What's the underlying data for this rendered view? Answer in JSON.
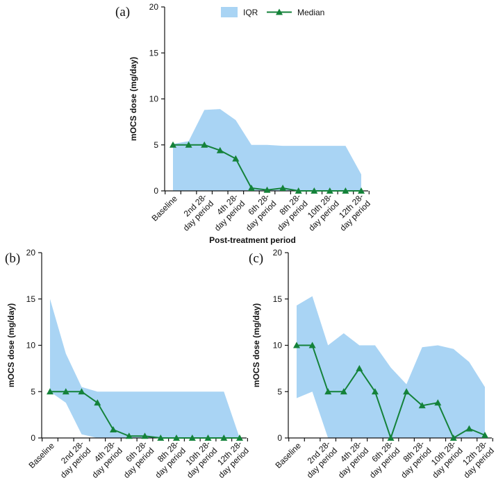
{
  "colors": {
    "iqr": "#a9d4f4",
    "median": "#14823a",
    "axis": "#111111"
  },
  "legend": {
    "iqr_label": "IQR",
    "median_label": "Median"
  },
  "chart_data": [
    {
      "panel": "(a)",
      "type": "area",
      "ylabel": "mOCS dose (mg/day)",
      "xlabel": "Post-treatment period",
      "ylim": [
        0,
        20
      ],
      "yticks": [
        "0",
        "5",
        "10",
        "15",
        "20"
      ],
      "tick_labels": [
        "Baseline",
        "2nd 28-day period",
        "4th 28-day period",
        "6th 28-day period",
        "8th 28-day period",
        "10th 28-day period",
        "12th 28-day period"
      ],
      "x_count": 13,
      "series": [
        {
          "name": "Median",
          "values": [
            5,
            5,
            5,
            4.4,
            3.5,
            0.3,
            0.1,
            0.3,
            0,
            0,
            0,
            0,
            0
          ]
        },
        {
          "name": "IQR upper",
          "values": [
            5.1,
            5.4,
            8.8,
            8.9,
            7.7,
            5,
            5,
            4.9,
            4.9,
            4.9,
            4.9,
            4.9,
            1.8
          ]
        },
        {
          "name": "IQR lower",
          "values": [
            0,
            0,
            0,
            0,
            0,
            0,
            0,
            0,
            0,
            0,
            0,
            0,
            0
          ]
        }
      ]
    },
    {
      "panel": "(b)",
      "type": "area",
      "ylabel": "mOCS dose (mg/day)",
      "xlabel": "",
      "ylim": [
        0,
        20
      ],
      "yticks": [
        "0",
        "5",
        "10",
        "15",
        "20"
      ],
      "tick_labels": [
        "Baseline",
        "2nd 28-day period",
        "4th 28-day period",
        "6th 28-day period",
        "8th 28-day period",
        "10th 28-day period",
        "12th 28-day period"
      ],
      "x_count": 13,
      "series": [
        {
          "name": "Median",
          "values": [
            5,
            5,
            5,
            3.8,
            0.9,
            0.2,
            0.2,
            0,
            0,
            0,
            0,
            0,
            0
          ]
        },
        {
          "name": "IQR upper",
          "values": [
            15,
            9.1,
            5.5,
            5,
            5,
            5,
            5,
            5,
            5,
            5,
            5,
            5,
            0
          ]
        },
        {
          "name": "IQR lower",
          "values": [
            5,
            3.8,
            0.4,
            0,
            0,
            0,
            0,
            0,
            0,
            0,
            0,
            0,
            0
          ]
        }
      ]
    },
    {
      "panel": "(c)",
      "type": "area",
      "ylabel": "mOCS dose (mg/day)",
      "xlabel": "",
      "ylim": [
        0,
        20
      ],
      "yticks": [
        "0",
        "5",
        "10",
        "15",
        "20"
      ],
      "tick_labels": [
        "Baseline",
        "2nd 28-day period",
        "4th 28-day period",
        "6th 28-day period",
        "8th 28-day period",
        "10th 28-day period",
        "12th 28-day period"
      ],
      "x_count": 13,
      "series": [
        {
          "name": "Median",
          "values": [
            10,
            10,
            5,
            5,
            7.5,
            5,
            0,
            5,
            3.5,
            3.8,
            0,
            1,
            0.3
          ]
        },
        {
          "name": "IQR upper",
          "values": [
            14.3,
            15.3,
            10,
            11.3,
            10,
            10,
            7.6,
            5.8,
            9.8,
            10,
            9.6,
            8.2,
            5.5
          ]
        },
        {
          "name": "IQR lower",
          "values": [
            4.3,
            5,
            0,
            0,
            0,
            0,
            0,
            0,
            0,
            0,
            0,
            0,
            0
          ]
        }
      ]
    }
  ]
}
